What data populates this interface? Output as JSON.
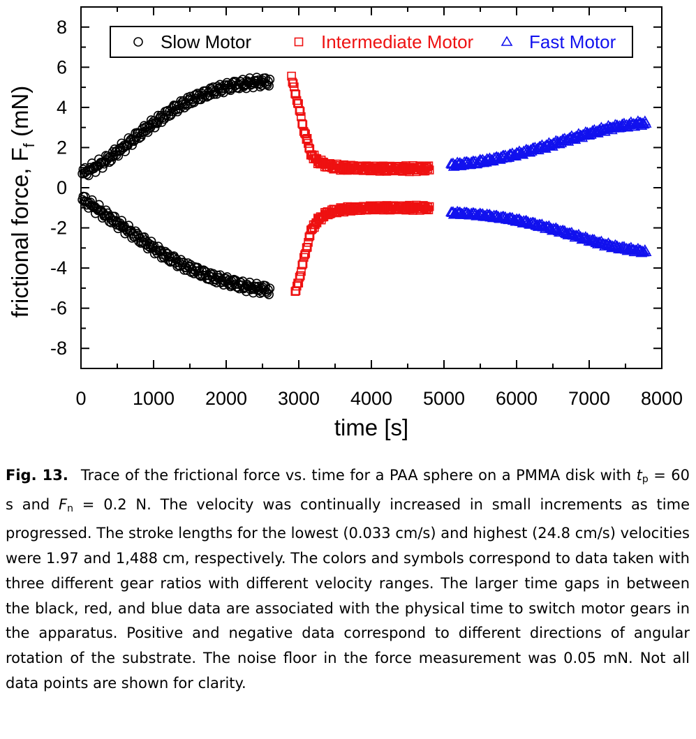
{
  "chart_data": {
    "type": "scatter",
    "title": "",
    "xlabel": "time [s]",
    "ylabel_main": "frictional force, F",
    "ylabel_sub": "f",
    "ylabel_unit": " (mN)",
    "xlim": [
      0,
      8000
    ],
    "ylim": [
      -9,
      9
    ],
    "x_ticks": [
      0,
      1000,
      2000,
      3000,
      4000,
      5000,
      6000,
      7000,
      8000
    ],
    "x_tick_labels": [
      "0",
      "1000",
      "2000",
      "3000",
      "4000",
      "5000",
      "6000",
      "7000",
      "8000"
    ],
    "y_ticks": [
      -8,
      -6,
      -4,
      -2,
      0,
      2,
      4,
      6,
      8
    ],
    "y_tick_labels": [
      "-8",
      "-6",
      "-4",
      "-2",
      "0",
      "2",
      "4",
      "6",
      "8"
    ],
    "grid": false,
    "legend_position": "top",
    "series": [
      {
        "name": "Slow Motor",
        "marker": "circle",
        "color": "#000000",
        "positive": [
          [
            20,
            0.7
          ],
          [
            100,
            0.85
          ],
          [
            200,
            1.05
          ],
          [
            300,
            1.25
          ],
          [
            400,
            1.5
          ],
          [
            500,
            1.8
          ],
          [
            600,
            2.05
          ],
          [
            700,
            2.35
          ],
          [
            800,
            2.65
          ],
          [
            900,
            2.95
          ],
          [
            1000,
            3.2
          ],
          [
            1100,
            3.45
          ],
          [
            1200,
            3.7
          ],
          [
            1300,
            3.95
          ],
          [
            1400,
            4.15
          ],
          [
            1500,
            4.35
          ],
          [
            1600,
            4.5
          ],
          [
            1700,
            4.65
          ],
          [
            1800,
            4.8
          ],
          [
            1900,
            4.9
          ],
          [
            2000,
            5.0
          ],
          [
            2100,
            5.1
          ],
          [
            2200,
            5.15
          ],
          [
            2300,
            5.2
          ],
          [
            2400,
            5.25
          ],
          [
            2500,
            5.25
          ],
          [
            2600,
            5.3
          ]
        ],
        "positive_spread": 0.55,
        "negative": [
          [
            20,
            -0.6
          ],
          [
            100,
            -0.75
          ],
          [
            200,
            -1.0
          ],
          [
            300,
            -1.25
          ],
          [
            400,
            -1.5
          ],
          [
            500,
            -1.75
          ],
          [
            600,
            -2.0
          ],
          [
            700,
            -2.25
          ],
          [
            800,
            -2.5
          ],
          [
            900,
            -2.75
          ],
          [
            1000,
            -3.0
          ],
          [
            1100,
            -3.25
          ],
          [
            1200,
            -3.45
          ],
          [
            1300,
            -3.65
          ],
          [
            1400,
            -3.85
          ],
          [
            1500,
            -4.0
          ],
          [
            1600,
            -4.15
          ],
          [
            1700,
            -4.3
          ],
          [
            1800,
            -4.45
          ],
          [
            1900,
            -4.55
          ],
          [
            2000,
            -4.65
          ],
          [
            2100,
            -4.75
          ],
          [
            2200,
            -4.85
          ],
          [
            2300,
            -4.95
          ],
          [
            2400,
            -5.0
          ],
          [
            2500,
            -5.05
          ],
          [
            2600,
            -5.1
          ]
        ],
        "negative_spread": 0.55
      },
      {
        "name": "Intermediate Motor",
        "marker": "square",
        "color": "#ee1111",
        "positive": [
          [
            2900,
            5.4
          ],
          [
            2950,
            4.8
          ],
          [
            3000,
            4.0
          ],
          [
            3050,
            3.2
          ],
          [
            3100,
            2.5
          ],
          [
            3150,
            1.9
          ],
          [
            3200,
            1.5
          ],
          [
            3300,
            1.25
          ],
          [
            3400,
            1.1
          ],
          [
            3500,
            1.05
          ],
          [
            3600,
            1.0
          ],
          [
            3700,
            1.0
          ],
          [
            3800,
            0.98
          ],
          [
            3900,
            0.97
          ],
          [
            4000,
            0.96
          ],
          [
            4100,
            0.95
          ],
          [
            4200,
            0.95
          ],
          [
            4300,
            0.95
          ],
          [
            4400,
            0.95
          ],
          [
            4500,
            0.95
          ],
          [
            4600,
            0.95
          ],
          [
            4700,
            0.95
          ],
          [
            4800,
            0.95
          ]
        ],
        "positive_spread": 0.35,
        "negative": [
          [
            2950,
            -5.3
          ],
          [
            3000,
            -4.6
          ],
          [
            3050,
            -3.9
          ],
          [
            3100,
            -3.1
          ],
          [
            3150,
            -2.4
          ],
          [
            3200,
            -1.9
          ],
          [
            3300,
            -1.5
          ],
          [
            3400,
            -1.25
          ],
          [
            3500,
            -1.15
          ],
          [
            3600,
            -1.1
          ],
          [
            3700,
            -1.05
          ],
          [
            3800,
            -1.05
          ],
          [
            3900,
            -1.02
          ],
          [
            4000,
            -1.0
          ],
          [
            4100,
            -1.0
          ],
          [
            4200,
            -1.0
          ],
          [
            4300,
            -1.0
          ],
          [
            4400,
            -1.0
          ],
          [
            4500,
            -1.0
          ],
          [
            4600,
            -1.0
          ],
          [
            4700,
            -1.0
          ],
          [
            4800,
            -1.0
          ]
        ],
        "negative_spread": 0.3
      },
      {
        "name": "Fast Motor",
        "marker": "triangle",
        "color": "#1111ee",
        "positive": [
          [
            5100,
            1.15
          ],
          [
            5200,
            1.15
          ],
          [
            5300,
            1.2
          ],
          [
            5400,
            1.22
          ],
          [
            5500,
            1.3
          ],
          [
            5600,
            1.35
          ],
          [
            5700,
            1.42
          ],
          [
            5800,
            1.5
          ],
          [
            5900,
            1.58
          ],
          [
            6000,
            1.67
          ],
          [
            6100,
            1.76
          ],
          [
            6200,
            1.86
          ],
          [
            6300,
            1.96
          ],
          [
            6400,
            2.06
          ],
          [
            6500,
            2.17
          ],
          [
            6600,
            2.28
          ],
          [
            6700,
            2.39
          ],
          [
            6800,
            2.5
          ],
          [
            6900,
            2.6
          ],
          [
            7000,
            2.7
          ],
          [
            7100,
            2.8
          ],
          [
            7200,
            2.9
          ],
          [
            7300,
            2.98
          ],
          [
            7400,
            3.05
          ],
          [
            7500,
            3.1
          ],
          [
            7600,
            3.15
          ],
          [
            7700,
            3.2
          ],
          [
            7780,
            3.2
          ]
        ],
        "positive_spread": 0.25,
        "negative": [
          [
            5100,
            -1.25
          ],
          [
            5200,
            -1.28
          ],
          [
            5300,
            -1.3
          ],
          [
            5400,
            -1.33
          ],
          [
            5500,
            -1.36
          ],
          [
            5600,
            -1.4
          ],
          [
            5700,
            -1.45
          ],
          [
            5800,
            -1.5
          ],
          [
            5900,
            -1.55
          ],
          [
            6000,
            -1.62
          ],
          [
            6100,
            -1.7
          ],
          [
            6200,
            -1.78
          ],
          [
            6300,
            -1.87
          ],
          [
            6400,
            -1.96
          ],
          [
            6500,
            -2.06
          ],
          [
            6600,
            -2.16
          ],
          [
            6700,
            -2.27
          ],
          [
            6800,
            -2.38
          ],
          [
            6900,
            -2.49
          ],
          [
            7000,
            -2.6
          ],
          [
            7100,
            -2.71
          ],
          [
            7200,
            -2.81
          ],
          [
            7300,
            -2.9
          ],
          [
            7400,
            -2.98
          ],
          [
            7500,
            -3.04
          ],
          [
            7600,
            -3.1
          ],
          [
            7700,
            -3.15
          ],
          [
            7780,
            -3.2
          ]
        ],
        "negative_spread": 0.2
      }
    ]
  },
  "caption": {
    "label": "Fig. 13.",
    "part1": "Trace of the frictional force vs. time for a PAA sphere on a PMMA disk with ",
    "tp_main": "t",
    "tp_sub": "p",
    "part2": " = 60 s and ",
    "fn_main": "F",
    "fn_sub": "n",
    "part3": " = 0.2 N. The velocity was continually increased in small increments as time progressed. The stroke lengths for the lowest (0.033 cm/s) and highest (24.8 cm/s) velocities were 1.97 and 1,488 cm, respectively. The colors and symbols correspond to data taken with three different gear ratios with different velocity ranges. The larger time gaps in between the black, red, and blue data are associated with the physical time to switch motor gears in the apparatus. Positive and negative data correspond to different directions of angular rotation of the substrate. The noise floor in the force measurement was 0.05 mN. Not all data points are shown for clarity."
  }
}
